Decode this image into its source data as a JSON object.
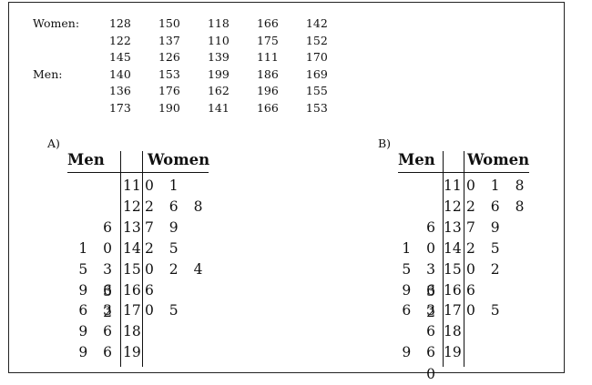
{
  "data": {
    "women": {
      "label": "Women:",
      "rows": [
        [
          "128",
          "150",
          "118",
          "166",
          "142"
        ],
        [
          "122",
          "137",
          "110",
          "175",
          "152"
        ],
        [
          "145",
          "126",
          "139",
          "111",
          "170"
        ]
      ]
    },
    "men": {
      "label": "Men:",
      "rows": [
        [
          "140",
          "153",
          "199",
          "186",
          "169"
        ],
        [
          "136",
          "176",
          "162",
          "196",
          "155"
        ],
        [
          "173",
          "190",
          "141",
          "166",
          "153"
        ]
      ]
    }
  },
  "options": [
    {
      "label": "A)",
      "left_header": "Men",
      "right_header": "Women",
      "rows": [
        {
          "left": "",
          "stem": "11",
          "right": "0 1"
        },
        {
          "left": "",
          "stem": "12",
          "right": "2 6 8"
        },
        {
          "left": "6",
          "stem": "13",
          "right": "7 9"
        },
        {
          "left": "1 0",
          "stem": "14",
          "right": "2 5"
        },
        {
          "left": "5 3 3",
          "stem": "15",
          "right": "0 2 4"
        },
        {
          "left": "9 6 2",
          "stem": "16",
          "right": "6"
        },
        {
          "left": "6 3",
          "stem": "17",
          "right": "0 5"
        },
        {
          "left": "9 6",
          "stem": "18",
          "right": ""
        },
        {
          "left": "9 6",
          "stem": "19",
          "right": ""
        }
      ]
    },
    {
      "label": "B)",
      "left_header": "Men",
      "right_header": "Women",
      "rows": [
        {
          "left": "",
          "stem": "11",
          "right": "0 1 8"
        },
        {
          "left": "",
          "stem": "12",
          "right": "2 6 8"
        },
        {
          "left": "6",
          "stem": "13",
          "right": "7 9"
        },
        {
          "left": "1 0",
          "stem": "14",
          "right": "2 5"
        },
        {
          "left": "5 3 3",
          "stem": "15",
          "right": "0 2"
        },
        {
          "left": "9 6 2",
          "stem": "16",
          "right": "6"
        },
        {
          "left": "6 3",
          "stem": "17",
          "right": "0 5"
        },
        {
          "left": "6",
          "stem": "18",
          "right": ""
        },
        {
          "left": "9 6 0",
          "stem": "19",
          "right": ""
        }
      ]
    }
  ]
}
